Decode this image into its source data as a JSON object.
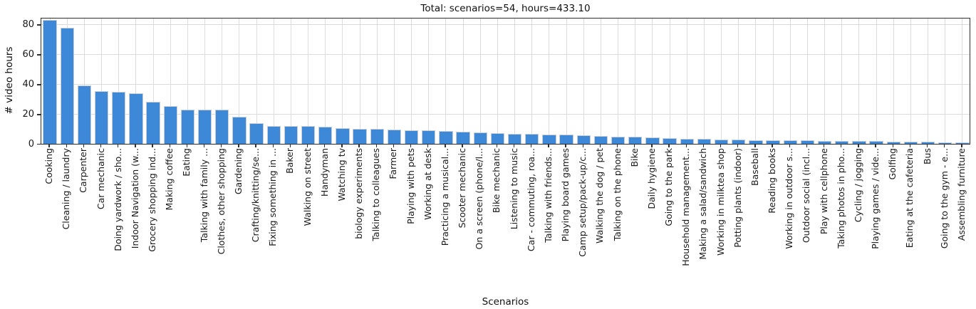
{
  "chart_data": {
    "type": "bar",
    "title": "Total: scenarios=54, hours=433.10",
    "xlabel": "Scenarios",
    "ylabel": "# video hours",
    "ylim": [
      0,
      85
    ],
    "yticks": [
      0,
      20,
      40,
      60,
      80
    ],
    "grid": true,
    "legend": null,
    "bar_color": "#3d89d8",
    "bar_edge_color": "#c9ced4",
    "grid_color": "#dcdcdc",
    "background_color": "#ffffff",
    "categories": [
      "Cooking",
      "Cleaning / laundry",
      "Carpenter",
      "Car mechanic",
      "Doing yardwork / sho...",
      "Indoor Navigation (w...",
      "Grocery shopping ind...",
      "Making coffee",
      "Eating",
      "Talking with family ...",
      "Clothes, other shopping",
      "Gardening",
      "Crafting/knitting/se...",
      "Fixing something in ...",
      "Baker",
      "Walking on street",
      "Handyman",
      "Watching tv",
      "biology experiments",
      "Talking to colleagues",
      "Farmer",
      "Playing with pets",
      "Working at desk",
      "Practicing a musical...",
      "Scooter mechanic",
      "On a screen (phone/l...",
      "Bike mechanic",
      "Listening to music",
      "Car - commuting, roa...",
      "Talking with friends...",
      "Playing board games",
      "Camp setup/pack-up/c...",
      "Walking the dog / pet",
      "Talking on the phone",
      "Bike",
      "Daily hygiene",
      "Going to the park",
      "Household management...",
      "Making a salad/sandwich",
      "Working in milktea shop",
      "Potting plants (indoor)",
      "Baseball",
      "Reading books",
      "Working in outdoor s...",
      "Outdoor social (incl...",
      "Play with cellphone",
      "Taking photos in pho...",
      "Cycling / jogging",
      "Playing games / vide...",
      "Golfing",
      "Eating at the cafeteria",
      "Bus",
      "Going to the gym - e...",
      "Assembling furniture"
    ],
    "values": [
      83,
      78,
      39,
      35.5,
      35,
      34,
      28,
      25.5,
      23,
      23,
      23,
      18,
      14,
      12,
      12,
      12,
      11.5,
      10.5,
      10,
      10,
      9.5,
      9,
      9,
      8.8,
      8.2,
      7.5,
      7,
      6.8,
      6.5,
      6.3,
      6,
      5.5,
      5.3,
      5,
      4.8,
      4.3,
      3.6,
      3.4,
      3.2,
      3,
      2.8,
      2.6,
      2.4,
      2.2,
      2.2,
      2,
      2,
      1.8,
      1.8,
      1.6,
      1.5,
      1.3,
      1.2,
      1
    ]
  }
}
